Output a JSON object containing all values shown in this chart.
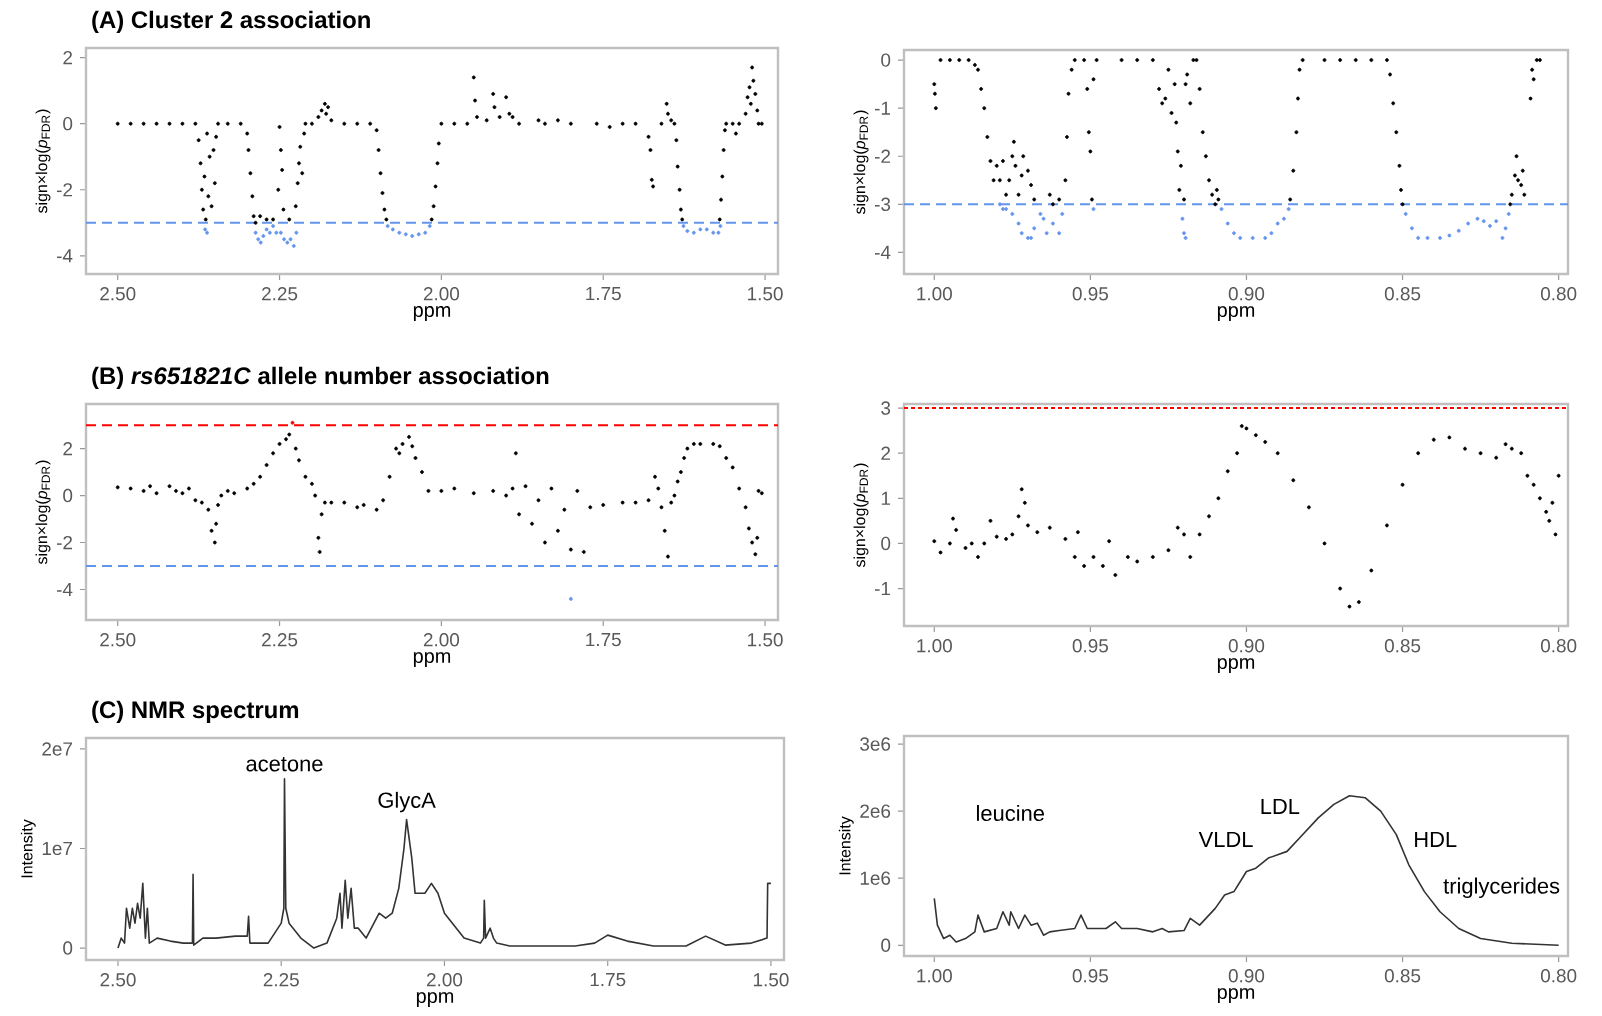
{
  "chart_data": [
    {
      "type": "scatter",
      "title": "(A) Cluster 2 association",
      "xlabel": "ppm",
      "ylabel": "sign×log(*p*$_{FDR}$)",
      "marker": "circle",
      "xlim": [
        2.549,
        1.48
      ],
      "xticks": [
        {
          "value": 2.5,
          "label": "2.50"
        },
        2.25,
        {
          "value": 2.0,
          "label": "2.00"
        },
        1.75,
        {
          "value": 1.5,
          "label": "1.50"
        }
      ],
      "ylim": [
        -4.55,
        2.29
      ],
      "yticks": [
        -4,
        -2,
        0,
        2
      ],
      "ref_lines": [
        {
          "axis": "y",
          "value": -3,
          "color": "#6495ed",
          "line_style": "dashed"
        }
      ],
      "series": [
        {
          "color": "#000000",
          "x": [
            2.5,
            2.48,
            2.46,
            2.44,
            2.42,
            2.4,
            2.38,
            2.375,
            2.372,
            2.37,
            2.368,
            2.366,
            2.364,
            2.362,
            2.36,
            2.358,
            2.355,
            2.352,
            2.35,
            2.348,
            2.345,
            2.33,
            2.31,
            2.3,
            2.298,
            2.295,
            2.292,
            2.29,
            2.287,
            2.28,
            2.27,
            2.26,
            2.252,
            2.25,
            2.248,
            2.246,
            2.244,
            2.235,
            2.225,
            2.222,
            2.22,
            2.218,
            2.215,
            2.212,
            2.21,
            2.2,
            2.19,
            2.185,
            2.18,
            2.178,
            2.175,
            2.17,
            2.15,
            2.13,
            2.11,
            2.1,
            2.097,
            2.094,
            2.091,
            2.088,
            2.085,
            2.015,
            2.012,
            2.009,
            2.006,
            2.004,
            2.0,
            1.98,
            1.96,
            1.95,
            1.948,
            1.945,
            1.93,
            1.92,
            1.918,
            1.91,
            1.9,
            1.895,
            1.89,
            1.88,
            1.85,
            1.84,
            1.82,
            1.8,
            1.76,
            1.74,
            1.72,
            1.7,
            1.68,
            1.677,
            1.675,
            1.673,
            1.66,
            1.652,
            1.65,
            1.645,
            1.64,
            1.637,
            1.635,
            1.632,
            1.63,
            1.628,
            1.57,
            1.568,
            1.566,
            1.564,
            1.562,
            1.56,
            1.55,
            1.545,
            1.54,
            1.53,
            1.527,
            1.524,
            1.522,
            1.52,
            1.518,
            1.515,
            1.512,
            1.51,
            1.505
          ],
          "values": [
            0,
            0,
            0,
            0,
            0,
            0,
            0,
            -0.5,
            -1.2,
            -2.0,
            -2.6,
            -1.6,
            -2.9,
            -0.3,
            -2.2,
            -1.0,
            -2.5,
            -0.8,
            -1.8,
            -0.4,
            0,
            0,
            0,
            -0.3,
            -0.8,
            -1.5,
            -2.2,
            -2.8,
            -3.0,
            -2.8,
            -2.9,
            -2.9,
            -2.0,
            -0.1,
            -0.8,
            -1.4,
            -2.6,
            -2.9,
            -2.5,
            -1.8,
            -1.2,
            -0.7,
            -1.5,
            -0.3,
            0,
            0,
            0.2,
            0.4,
            0.6,
            0.3,
            0.5,
            0.1,
            0,
            0,
            0,
            -0.2,
            -0.8,
            -1.5,
            -2.1,
            -2.6,
            -2.9,
            -2.9,
            -2.5,
            -1.9,
            -1.2,
            -0.6,
            0,
            0,
            0,
            1.4,
            0.7,
            0.2,
            0.1,
            0.9,
            0.5,
            0.2,
            0.8,
            0.3,
            0.2,
            0,
            0.1,
            0,
            0.1,
            0,
            0,
            -0.1,
            0,
            0,
            -0.4,
            -0.8,
            -1.7,
            -1.9,
            0,
            0.6,
            0.3,
            0.1,
            0,
            -0.5,
            -1.3,
            -2.0,
            -2.6,
            -2.9,
            -2.9,
            -2.3,
            -1.6,
            -0.8,
            -0.2,
            0,
            0,
            -0.3,
            0,
            0.3,
            0.8,
            1.1,
            0.6,
            1.7,
            1.3,
            0.9,
            0.4,
            0,
            0
          ]
        },
        {
          "color": "#6495ed",
          "x": [
            2.365,
            2.362,
            2.287,
            2.283,
            2.279,
            2.275,
            2.27,
            2.265,
            2.26,
            2.255,
            2.248,
            2.243,
            2.238,
            2.233,
            2.228,
            2.224,
            2.083,
            2.075,
            2.065,
            2.055,
            2.045,
            2.035,
            2.025,
            2.018,
            1.626,
            1.62,
            1.61,
            1.6,
            1.59,
            1.58,
            1.572,
            1.569
          ],
          "values": [
            -3.2,
            -3.3,
            -3.3,
            -3.5,
            -3.6,
            -3.4,
            -3.2,
            -3.3,
            -3.1,
            -3.3,
            -3.3,
            -3.5,
            -3.6,
            -3.5,
            -3.7,
            -3.3,
            -3.1,
            -3.2,
            -3.3,
            -3.35,
            -3.4,
            -3.35,
            -3.3,
            -3.1,
            -3.1,
            -3.25,
            -3.3,
            -3.2,
            -3.2,
            -3.3,
            -3.3,
            -3.1
          ]
        }
      ]
    },
    {
      "type": "scatter",
      "xlabel": "ppm",
      "ylabel": "sign×log(*p*$_{FDR}$)",
      "marker": "circle",
      "xlim": [
        1.0097,
        0.797
      ],
      "xticks": [
        {
          "value": 1.0,
          "label": "1.00"
        },
        0.95,
        {
          "value": 0.9,
          "label": "0.90"
        },
        0.85,
        {
          "value": 0.8,
          "label": "0.80"
        }
      ],
      "ylim": [
        -4.45,
        0.21
      ],
      "yticks": [
        -4,
        -3,
        -2,
        -1,
        0
      ],
      "ref_lines": [
        {
          "axis": "y",
          "value": -3,
          "color": "#6495ed",
          "line_style": "dashed"
        }
      ],
      "series": [
        {
          "color": "#000000",
          "x": [
            1.0,
            0.9998,
            0.9995,
            0.998,
            0.995,
            0.992,
            0.989,
            0.987,
            0.986,
            0.985,
            0.984,
            0.983,
            0.982,
            0.981,
            0.98,
            0.979,
            0.978,
            0.977,
            0.976,
            0.975,
            0.9745,
            0.974,
            0.973,
            0.972,
            0.9715,
            0.97,
            0.969,
            0.968,
            0.963,
            0.962,
            0.96,
            0.958,
            0.9575,
            0.957,
            0.956,
            0.955,
            0.952,
            0.951,
            0.9505,
            0.95,
            0.9495,
            0.949,
            0.948,
            0.94,
            0.935,
            0.93,
            0.928,
            0.927,
            0.926,
            0.925,
            0.924,
            0.923,
            0.9225,
            0.922,
            0.9215,
            0.921,
            0.92,
            0.9195,
            0.919,
            0.918,
            0.917,
            0.916,
            0.915,
            0.914,
            0.913,
            0.912,
            0.911,
            0.91,
            0.9095,
            0.909,
            0.886,
            0.885,
            0.884,
            0.8835,
            0.883,
            0.882,
            0.875,
            0.87,
            0.865,
            0.86,
            0.855,
            0.854,
            0.853,
            0.852,
            0.851,
            0.8505,
            0.85,
            0.8155,
            0.815,
            0.814,
            0.8135,
            0.813,
            0.812,
            0.8115,
            0.811,
            0.809,
            0.8085,
            0.808,
            0.807,
            0.806
          ],
          "values": [
            -0.5,
            -0.7,
            -1.0,
            0,
            0,
            0,
            0,
            -0.1,
            -0.2,
            -0.6,
            -1.0,
            -1.6,
            -2.1,
            -2.5,
            -2.2,
            -2.5,
            -2.1,
            -2.8,
            -2.5,
            -2.0,
            -1.7,
            -2.2,
            -2.8,
            -2.4,
            -2.0,
            -2.3,
            -2.6,
            -2.9,
            -2.8,
            -3.0,
            -2.9,
            -2.5,
            -1.6,
            -0.7,
            -0.2,
            0,
            0,
            -0.6,
            -1.5,
            -1.9,
            -2.9,
            -0.4,
            0,
            0,
            0,
            0,
            -0.6,
            -0.9,
            -0.8,
            -0.2,
            -1.1,
            -0.5,
            -1.3,
            -1.9,
            -2.7,
            -2.2,
            -2.9,
            -0.5,
            -0.3,
            -0.9,
            0,
            0,
            -0.6,
            -1.5,
            -2.0,
            -2.5,
            -2.8,
            -3.0,
            -2.7,
            -2.9,
            -2.9,
            -2.3,
            -1.5,
            -0.8,
            -0.2,
            0,
            0,
            0,
            0,
            0,
            0,
            -0.3,
            -0.9,
            -1.5,
            -2.2,
            -2.7,
            -3.0,
            -3.0,
            -2.8,
            -2.4,
            -2.0,
            -2.5,
            -2.6,
            -2.3,
            -2.8,
            -0.8,
            -0.2,
            -0.4,
            0,
            0
          ]
        },
        {
          "color": "#6495ed",
          "x": [
            0.979,
            0.978,
            0.977,
            0.975,
            0.973,
            0.972,
            0.97,
            0.969,
            0.968,
            0.966,
            0.965,
            0.964,
            0.962,
            0.96,
            0.959,
            0.949,
            0.9205,
            0.92,
            0.9195,
            0.908,
            0.906,
            0.904,
            0.902,
            0.898,
            0.894,
            0.892,
            0.89,
            0.888,
            0.8865,
            0.849,
            0.847,
            0.845,
            0.842,
            0.838,
            0.835,
            0.832,
            0.829,
            0.826,
            0.824,
            0.822,
            0.82,
            0.818,
            0.817,
            0.816
          ],
          "values": [
            -3.0,
            -3.1,
            -3.1,
            -3.2,
            -3.4,
            -3.6,
            -3.7,
            -3.7,
            -3.5,
            -3.2,
            -3.3,
            -3.6,
            -3.4,
            -3.6,
            -3.2,
            -3.1,
            -3.3,
            -3.6,
            -3.7,
            -3.1,
            -3.4,
            -3.6,
            -3.7,
            -3.7,
            -3.7,
            -3.6,
            -3.4,
            -3.3,
            -3.1,
            -3.2,
            -3.5,
            -3.7,
            -3.7,
            -3.7,
            -3.65,
            -3.55,
            -3.4,
            -3.3,
            -3.35,
            -3.45,
            -3.35,
            -3.7,
            -3.5,
            -3.2
          ]
        }
      ]
    },
    {
      "type": "scatter",
      "title": "(B) *rs651821C* allele number association",
      "xlabel": "ppm",
      "ylabel": "sign×log(*p*$_{FDR}$)",
      "marker": "circle",
      "xlim": [
        2.549,
        1.48
      ],
      "xticks": [
        {
          "value": 2.5,
          "label": "2.50"
        },
        2.25,
        {
          "value": 2.0,
          "label": "2.00"
        },
        1.75,
        {
          "value": 1.5,
          "label": "1.50"
        }
      ],
      "ylim": [
        -5.3,
        3.9
      ],
      "yticks": [
        -4,
        -2,
        0,
        2
      ],
      "ref_lines": [
        {
          "axis": "y",
          "value": 3,
          "color": "#ff0000",
          "line_style": "dashed"
        },
        {
          "axis": "y",
          "value": -3,
          "color": "#6495ed",
          "line_style": "dashed"
        }
      ],
      "series": [
        {
          "color": "#000000",
          "x": [
            2.5,
            2.48,
            2.46,
            2.45,
            2.44,
            2.42,
            2.41,
            2.4,
            2.39,
            2.38,
            2.37,
            2.36,
            2.355,
            2.35,
            2.348,
            2.345,
            2.34,
            2.33,
            2.32,
            2.3,
            2.29,
            2.28,
            2.27,
            2.26,
            2.25,
            2.24,
            2.235,
            2.225,
            2.22,
            2.21,
            2.2,
            2.195,
            2.19,
            2.188,
            2.185,
            2.18,
            2.17,
            2.15,
            2.13,
            2.12,
            2.1,
            2.09,
            2.08,
            2.07,
            2.065,
            2.06,
            2.05,
            2.045,
            2.04,
            2.03,
            2.02,
            2.0,
            1.98,
            1.95,
            1.92,
            1.9,
            1.89,
            1.885,
            1.88,
            1.87,
            1.86,
            1.85,
            1.84,
            1.83,
            1.82,
            1.81,
            1.8,
            1.79,
            1.78,
            1.77,
            1.75,
            1.72,
            1.7,
            1.68,
            1.67,
            1.665,
            1.66,
            1.655,
            1.65,
            1.645,
            1.64,
            1.635,
            1.63,
            1.625,
            1.62,
            1.61,
            1.6,
            1.58,
            1.57,
            1.56,
            1.55,
            1.54,
            1.53,
            1.525,
            1.52,
            1.515,
            1.512,
            1.51,
            1.505
          ],
          "values": [
            0.35,
            0.3,
            0.2,
            0.4,
            0.1,
            0.4,
            0.2,
            0.1,
            0.3,
            -0.2,
            -0.3,
            -0.6,
            -1.5,
            -2.0,
            -1.2,
            -0.4,
            0,
            0.2,
            0.1,
            0.3,
            0.5,
            0.8,
            1.3,
            1.8,
            2.2,
            2.4,
            2.6,
            2.0,
            1.5,
            0.8,
            0.5,
            0.0,
            -1.8,
            -2.4,
            -0.8,
            -0.3,
            -0.3,
            -0.3,
            -0.5,
            -0.4,
            -0.6,
            -0.2,
            0.8,
            2.0,
            1.8,
            2.2,
            2.5,
            2.1,
            1.6,
            1.0,
            0.2,
            0.2,
            0.3,
            0.1,
            0.2,
            0.0,
            0.3,
            1.8,
            -0.8,
            0.4,
            -1.2,
            -0.2,
            -2.0,
            0.3,
            -1.5,
            -0.6,
            -2.3,
            0.2,
            -2.4,
            -0.5,
            -0.4,
            -0.3,
            -0.3,
            -0.2,
            0.8,
            0.3,
            -0.5,
            -1.5,
            -2.6,
            -0.3,
            0.0,
            0.6,
            1.0,
            1.6,
            2.0,
            2.2,
            2.2,
            2.2,
            2.1,
            1.6,
            1.2,
            0.3,
            -0.5,
            -1.4,
            -2.0,
            -2.5,
            -1.8,
            0.2,
            0.1
          ]
        },
        {
          "color": "#ff0000",
          "x": [
            2.23
          ],
          "values": [
            3.1
          ]
        },
        {
          "color": "#6495ed",
          "x": [
            1.8
          ],
          "values": [
            -4.4
          ]
        }
      ]
    },
    {
      "type": "scatter",
      "xlabel": "ppm",
      "ylabel": "sign×log(*p*$_{FDR}$)",
      "marker": "circle",
      "xlim": [
        1.0097,
        0.797
      ],
      "xticks": [
        {
          "value": 1.0,
          "label": "1.00"
        },
        0.95,
        {
          "value": 0.9,
          "label": "0.90"
        },
        0.85,
        {
          "value": 0.8,
          "label": "0.80"
        }
      ],
      "ylim": [
        -1.83,
        3.09
      ],
      "yticks": [
        -1,
        0,
        1,
        2,
        3
      ],
      "ref_lines": [
        {
          "axis": "y",
          "value": 3,
          "color": "#ff0000",
          "line_style": "dotted"
        }
      ],
      "series": [
        {
          "color": "#000000",
          "x": [
            1.0,
            0.998,
            0.995,
            0.994,
            0.993,
            0.99,
            0.988,
            0.986,
            0.984,
            0.982,
            0.98,
            0.977,
            0.975,
            0.973,
            0.972,
            0.971,
            0.97,
            0.967,
            0.963,
            0.958,
            0.955,
            0.954,
            0.952,
            0.949,
            0.946,
            0.944,
            0.942,
            0.938,
            0.935,
            0.93,
            0.925,
            0.922,
            0.92,
            0.918,
            0.915,
            0.912,
            0.909,
            0.906,
            0.903,
            0.9015,
            0.9,
            0.897,
            0.894,
            0.89,
            0.885,
            0.88,
            0.875,
            0.87,
            0.867,
            0.864,
            0.86,
            0.855,
            0.85,
            0.845,
            0.84,
            0.835,
            0.83,
            0.825,
            0.82,
            0.817,
            0.815,
            0.812,
            0.81,
            0.808,
            0.806,
            0.804,
            0.803,
            0.802,
            0.801,
            0.8
          ],
          "values": [
            0.05,
            -0.2,
            0.0,
            0.55,
            0.3,
            -0.1,
            0.0,
            -0.3,
            0.0,
            0.5,
            0.15,
            0.1,
            0.2,
            0.6,
            1.2,
            0.9,
            0.4,
            0.25,
            0.35,
            0.1,
            -0.3,
            0.25,
            -0.5,
            -0.3,
            -0.5,
            0.05,
            -0.7,
            -0.3,
            -0.4,
            -0.3,
            -0.15,
            0.35,
            0.2,
            -0.3,
            0.2,
            0.6,
            1.0,
            1.6,
            2.0,
            2.6,
            2.55,
            2.4,
            2.25,
            2.0,
            1.4,
            0.8,
            0.0,
            -1.0,
            -1.4,
            -1.3,
            -0.6,
            0.4,
            1.3,
            2.0,
            2.3,
            2.35,
            2.1,
            2.0,
            1.9,
            2.2,
            2.1,
            2.0,
            1.5,
            1.3,
            1.0,
            0.7,
            0.5,
            0.9,
            0.2,
            1.5
          ]
        }
      ]
    },
    {
      "type": "line",
      "title": "(C) NMR spectrum",
      "xlabel": "ppm",
      "ylabel": "Intensity",
      "xlim": [
        2.549,
        1.48
      ],
      "xticks": [
        {
          "value": 2.5,
          "label": "2.50"
        },
        2.25,
        {
          "value": 2.0,
          "label": "2.00"
        },
        1.75,
        {
          "value": 1.5,
          "label": "1.50"
        }
      ],
      "ylim": [
        -1200000,
        21100000
      ],
      "yticks": [
        0,
        {
          "value": 10000000,
          "label": "1e7"
        },
        {
          "value": 20000000,
          "label": "2e7"
        }
      ],
      "annotations": [
        {
          "text": "acetone",
          "x": 2.245,
          "y": 17000000
        },
        {
          "text": "GlycA",
          "x": 2.058,
          "y": 12900000
        }
      ],
      "series": [
        {
          "color": "#333333",
          "x": [
            2.5,
            2.495,
            2.49,
            2.487,
            2.482,
            2.478,
            2.474,
            2.47,
            2.466,
            2.462,
            2.458,
            2.455,
            2.452,
            2.44,
            2.42,
            2.4,
            2.386,
            2.385,
            2.384,
            2.37,
            2.35,
            2.32,
            2.302,
            2.3,
            2.298,
            2.27,
            2.25,
            2.246,
            2.245,
            2.243,
            2.238,
            2.22,
            2.2,
            2.18,
            2.165,
            2.16,
            2.157,
            2.152,
            2.148,
            2.143,
            2.138,
            2.132,
            2.12,
            2.1,
            2.09,
            2.08,
            2.07,
            2.062,
            2.058,
            2.05,
            2.045,
            2.03,
            2.02,
            2.01,
            2.0,
            1.97,
            1.945,
            1.94,
            1.939,
            1.937,
            1.93,
            1.925,
            1.92,
            1.9,
            1.85,
            1.8,
            1.77,
            1.75,
            1.72,
            1.68,
            1.63,
            1.6,
            1.57,
            1.53,
            1.506,
            1.505,
            1.5
          ],
          "values": [
            0,
            1000000,
            500000,
            4000000,
            2000000,
            4000000,
            2500000,
            4500000,
            3000000,
            6500000,
            1000000,
            4000000,
            500000,
            1000000,
            700000,
            500000,
            500000,
            7400000,
            300000,
            1000000,
            1000000,
            1200000,
            1200000,
            3200000,
            500000,
            500000,
            2500000,
            4000000,
            17000000,
            4000000,
            2500000,
            1000000,
            0,
            500000,
            3000000,
            5500000,
            2000000,
            6800000,
            3000000,
            6000000,
            2000000,
            2000000,
            1000000,
            3500000,
            3000000,
            3500000,
            6000000,
            10000000,
            12900000,
            9000000,
            5500000,
            5500000,
            6500000,
            5500000,
            3500000,
            1000000,
            500000,
            1000000,
            4800000,
            1000000,
            2000000,
            1000000,
            500000,
            200000,
            200000,
            200000,
            500000,
            1300000,
            700000,
            200000,
            200000,
            1200000,
            300000,
            500000,
            1000000,
            6500000,
            6500000
          ]
        }
      ]
    },
    {
      "type": "line",
      "xlabel": "ppm",
      "ylabel": "Intensity",
      "xlim": [
        1.0097,
        0.797
      ],
      "xticks": [
        {
          "value": 1.0,
          "label": "1.00"
        },
        0.95,
        {
          "value": 0.9,
          "label": "0.90"
        },
        0.85,
        {
          "value": 0.8,
          "label": "0.80"
        }
      ],
      "ylim": [
        -160000,
        3120000
      ],
      "yticks": [
        0,
        {
          "value": 1000000,
          "label": "1e6"
        },
        {
          "value": 2000000,
          "label": "2e6"
        },
        {
          "value": 3000000,
          "label": "3e6"
        }
      ],
      "annotations": [
        "leucine",
        "VLDL",
        "LDL",
        "HDL",
        "triglycerides"
      ],
      "series": [
        {
          "color": "#333333",
          "x": [
            1.0,
            0.999,
            0.997,
            0.995,
            0.993,
            0.99,
            0.987,
            0.986,
            0.984,
            0.98,
            0.978,
            0.976,
            0.9755,
            0.973,
            0.971,
            0.969,
            0.967,
            0.965,
            0.963,
            0.96,
            0.955,
            0.953,
            0.951,
            0.945,
            0.942,
            0.94,
            0.935,
            0.93,
            0.927,
            0.925,
            0.92,
            0.918,
            0.915,
            0.91,
            0.907,
            0.904,
            0.9,
            0.897,
            0.893,
            0.887,
            0.883,
            0.877,
            0.872,
            0.867,
            0.862,
            0.857,
            0.852,
            0.848,
            0.843,
            0.838,
            0.832,
            0.825,
            0.815,
            0.8
          ],
          "values": [
            700000,
            300000,
            100000,
            150000,
            50000,
            100000,
            200000,
            450000,
            200000,
            250000,
            500000,
            300000,
            500000,
            250000,
            450000,
            300000,
            330000,
            150000,
            200000,
            220000,
            250000,
            450000,
            250000,
            250000,
            350000,
            250000,
            250000,
            200000,
            250000,
            200000,
            220000,
            400000,
            300000,
            550000,
            750000,
            800000,
            1100000,
            1150000,
            1300000,
            1400000,
            1600000,
            1900000,
            2100000,
            2230000,
            2200000,
            2000000,
            1650000,
            1200000,
            800000,
            500000,
            250000,
            100000,
            30000,
            0
          ]
        }
      ]
    }
  ]
}
